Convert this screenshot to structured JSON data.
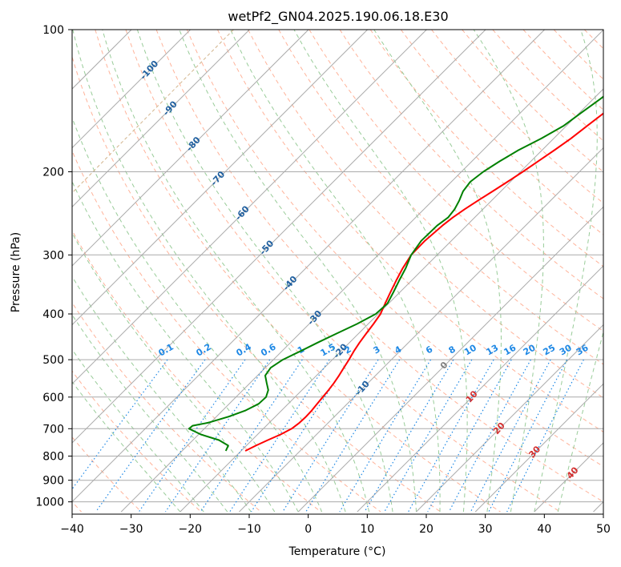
{
  "chart_data": {
    "type": "line",
    "title": "wetPf2_GN04.2025.190.06.18.E30",
    "xlabel": "Temperature (°C)",
    "ylabel": "Pressure (hPa)",
    "xlim": [
      -40,
      50
    ],
    "ylim": [
      1050,
      100
    ],
    "y_scale": "log",
    "x_ticks": [
      -40,
      -30,
      -20,
      -10,
      0,
      10,
      20,
      30,
      40,
      50
    ],
    "x_tick_labels": [
      "−40",
      "−30",
      "−20",
      "−10",
      "0",
      "10",
      "20",
      "30",
      "40",
      "50"
    ],
    "y_ticks": [
      1000,
      900,
      800,
      700,
      600,
      500,
      400,
      300,
      200,
      100
    ],
    "y_tick_labels": [
      "1000",
      "900",
      "800",
      "700",
      "600",
      "500",
      "400",
      "300",
      "200",
      "100"
    ],
    "grid": true,
    "colors": {
      "temperature": "#ff0000",
      "dewpoint": "#008000",
      "isotherm": "#aaaaaa",
      "dry_adiabat": "#ffb39a",
      "moist_adiabat": "#99cc99",
      "mixing_ratio": "#1e88e5",
      "isotherm_label": "#1f5f9f",
      "warm_label": "#d32f2f",
      "fan_line": "#d2b48c"
    },
    "series": [
      {
        "pressure": [
          780,
          760,
          740,
          720,
          700,
          680,
          660,
          640,
          620,
          600,
          580,
          560,
          540,
          520,
          500,
          480,
          460,
          440,
          420,
          400,
          380,
          360,
          340,
          320,
          300,
          280,
          260,
          250,
          240,
          230,
          220,
          210,
          200,
          190,
          180,
          170,
          160,
          150,
          140,
          130,
          120,
          110,
          100
        ],
        "temperature": [
          -19.3,
          -18.4,
          -17.3,
          -16.1,
          -15.2,
          -14.9,
          -14.8,
          -14.9,
          -15.1,
          -15.3,
          -15.5,
          -15.8,
          -16.2,
          -16.7,
          -17.2,
          -17.8,
          -18.3,
          -18.7,
          -19.1,
          -19.6,
          -20.6,
          -21.6,
          -22.6,
          -23.6,
          -24.4,
          -24.5,
          -24.1,
          -23.7,
          -23.1,
          -22.3,
          -21.4,
          -20.5,
          -19.6,
          -18.8,
          -17.9,
          -17.1,
          -16.5,
          -15.8,
          -15.1,
          -14.1,
          -12.9,
          -11.6,
          -10.4
        ]
      },
      {
        "pressure": [
          780,
          760,
          740,
          720,
          700,
          690,
          680,
          660,
          640,
          620,
          600,
          580,
          560,
          540,
          520,
          500,
          480,
          460,
          440,
          420,
          400,
          380,
          360,
          340,
          320,
          300,
          280,
          260,
          250,
          240,
          230,
          220,
          210,
          200,
          190,
          180,
          170,
          160,
          150,
          140,
          130,
          120,
          110,
          100
        ],
        "dewpoint": [
          -22.6,
          -23.1,
          -25.6,
          -29.6,
          -32.6,
          -32.5,
          -30.4,
          -27.9,
          -26.1,
          -25.0,
          -24.9,
          -25.7,
          -27.2,
          -28.7,
          -29.1,
          -28.4,
          -26.9,
          -25.4,
          -23.7,
          -21.9,
          -20.4,
          -20.2,
          -21.1,
          -22.1,
          -23.1,
          -24.4,
          -25.1,
          -25.0,
          -24.5,
          -24.8,
          -25.5,
          -26.4,
          -26.8,
          -26.3,
          -25.3,
          -24.0,
          -22.1,
          -20.5,
          -19.7,
          -18.8,
          -18.0,
          -17.0,
          -16.2,
          -15.7
        ]
      }
    ],
    "labels": {
      "isotherm_values": [
        "-100",
        "-90",
        "-80",
        "-70",
        "-60",
        "-50",
        "-40",
        "-30",
        "-20",
        "-10"
      ],
      "mixing_ratio_values": [
        "0.1",
        "0.2",
        "0.4",
        "0.6",
        "1",
        "1.5",
        "2",
        "3",
        "4",
        "6",
        "8",
        "10",
        "13",
        "16",
        "20",
        "25",
        "30",
        "36"
      ],
      "warm_isotherm_values": [
        "0",
        "10",
        "20",
        "30",
        "40"
      ]
    }
  }
}
